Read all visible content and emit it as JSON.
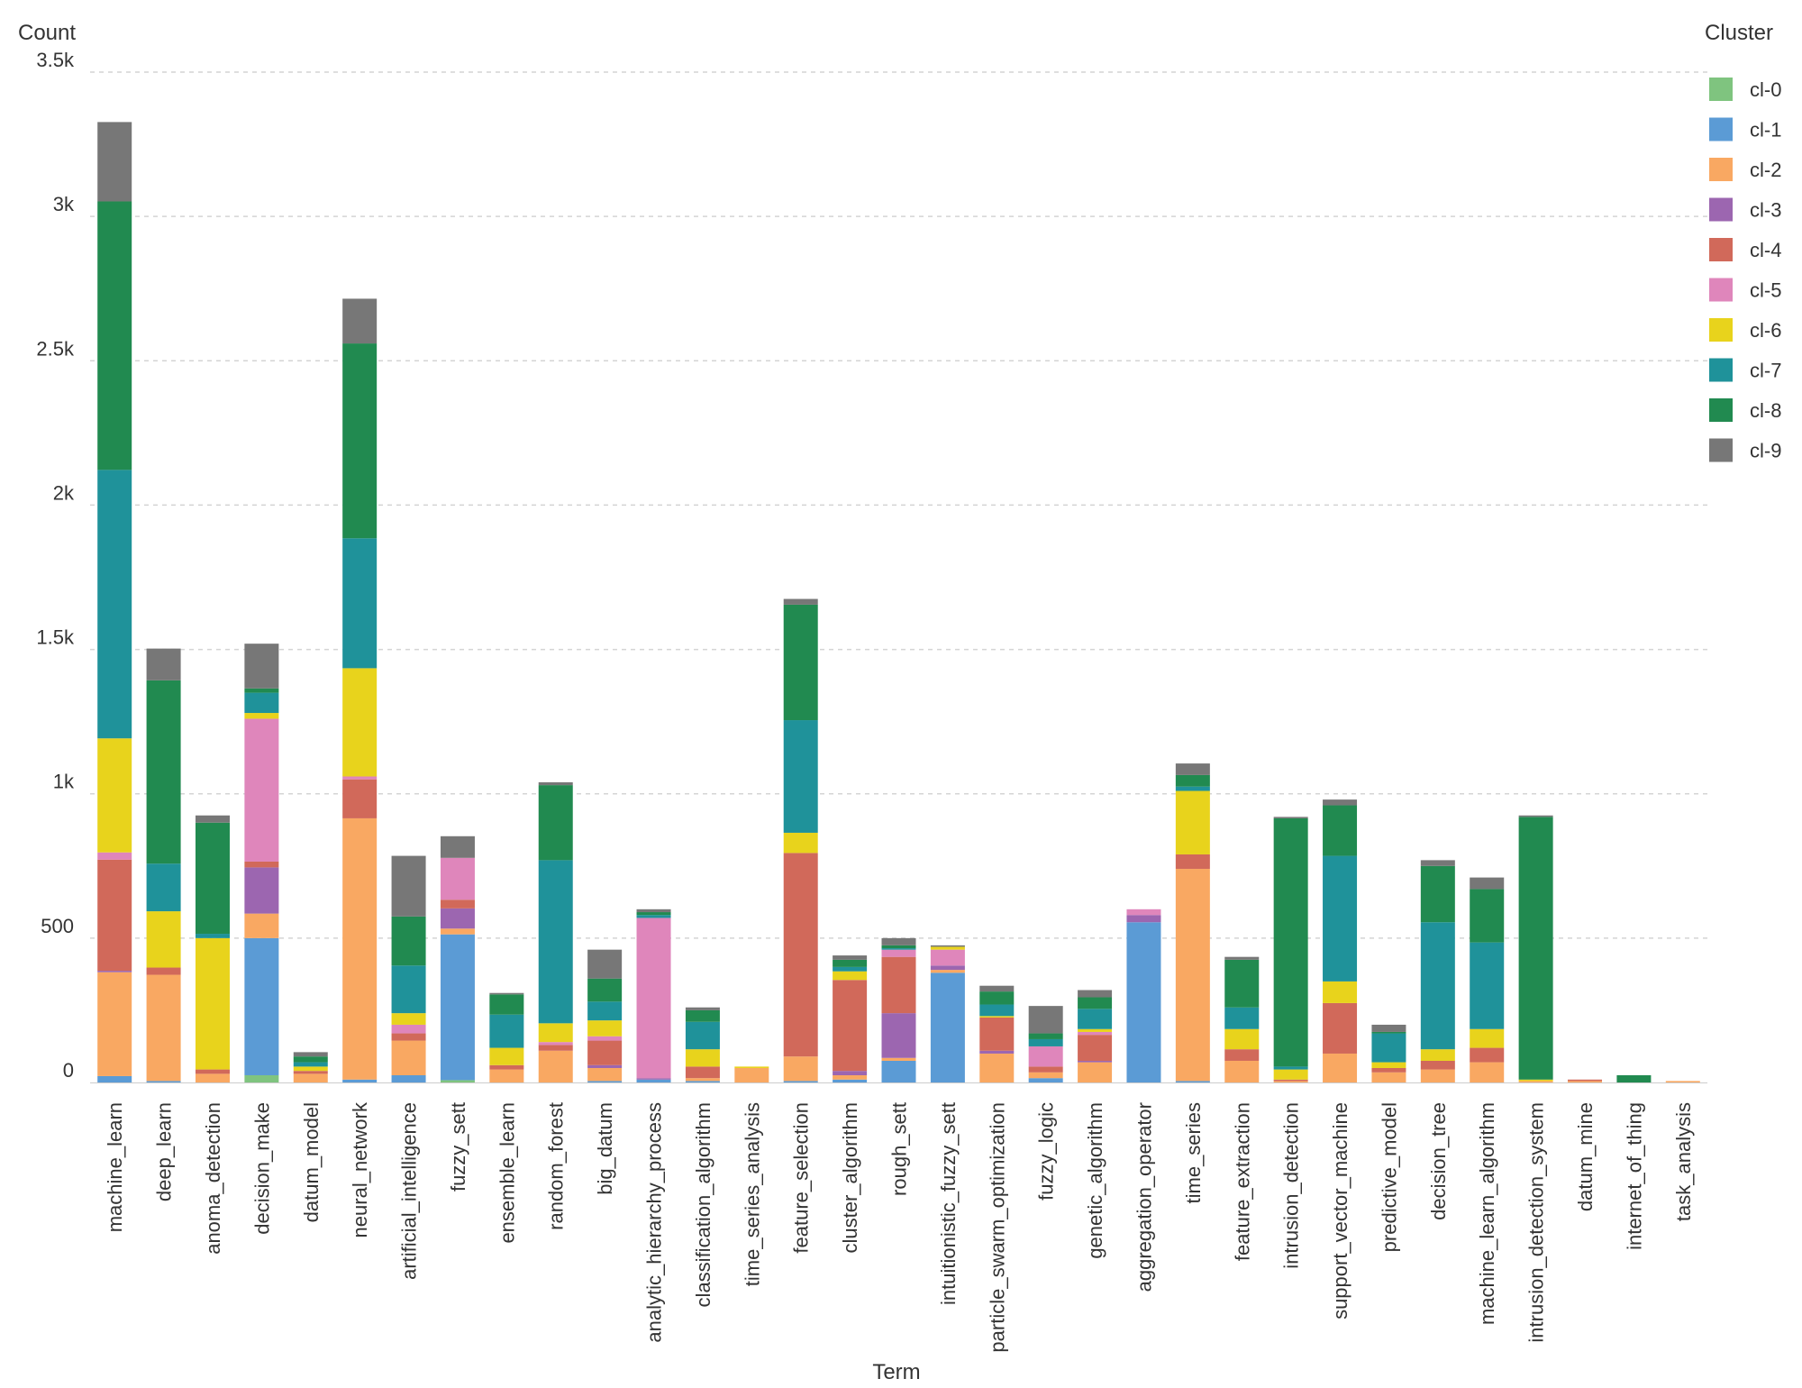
{
  "chart_data": {
    "type": "bar",
    "stacked": true,
    "title": "",
    "xlabel": "Term",
    "ylabel": "Count",
    "ylim": [
      0,
      3500
    ],
    "yticks": [
      0,
      500,
      1000,
      1500,
      2000,
      2500,
      3000,
      3500
    ],
    "ytick_labels": [
      "0",
      "500",
      "1k",
      "1.5k",
      "2k",
      "2.5k",
      "3k",
      "3.5k"
    ],
    "grid": true,
    "legend_title": "Cluster",
    "legend_position": "right",
    "categories": [
      "machine_learn",
      "deep_learn",
      "anoma_detection",
      "decision_make",
      "datum_model",
      "neural_network",
      "artificial_intelligence",
      "fuzzy_sett",
      "ensemble_learn",
      "random_forest",
      "big_datum",
      "analytic_hierarchy_process",
      "classification_algorithm",
      "time_series_analysis",
      "feature_selection",
      "cluster_algorithm",
      "rough_sett",
      "intuitionistic_fuzzy_sett",
      "particle_swarm_optimization",
      "fuzzy_logic",
      "genetic_algorithm",
      "aggregation_operator",
      "time_series",
      "feature_extraction",
      "intrusion_detection",
      "support_vector_machine",
      "predictive_model",
      "decision_tree",
      "machine_learn_algorithm",
      "intrusion_detection_system",
      "datum_mine",
      "internet_of_thing",
      "task_analysis"
    ],
    "series": [
      {
        "name": "cl-0",
        "color": "#7fc47f",
        "values": [
          0,
          0,
          0,
          25,
          0,
          0,
          0,
          8,
          0,
          0,
          0,
          0,
          0,
          0,
          0,
          0,
          0,
          0,
          0,
          0,
          0,
          0,
          0,
          0,
          0,
          0,
          0,
          0,
          0,
          0,
          0,
          0,
          0
        ]
      },
      {
        "name": "cl-1",
        "color": "#5b9bd5",
        "values": [
          22,
          5,
          0,
          475,
          0,
          10,
          25,
          505,
          0,
          0,
          5,
          10,
          5,
          0,
          5,
          10,
          75,
          380,
          0,
          15,
          0,
          555,
          5,
          0,
          0,
          0,
          0,
          0,
          0,
          0,
          0,
          0,
          0
        ]
      },
      {
        "name": "cl-2",
        "color": "#f9a862",
        "values": [
          360,
          368,
          30,
          85,
          30,
          905,
          120,
          20,
          45,
          110,
          45,
          0,
          10,
          50,
          85,
          15,
          10,
          10,
          100,
          20,
          70,
          0,
          735,
          75,
          5,
          100,
          35,
          45,
          70,
          5,
          5,
          0,
          5
        ]
      },
      {
        "name": "cl-3",
        "color": "#9c66b0",
        "values": [
          5,
          0,
          0,
          160,
          0,
          0,
          0,
          70,
          0,
          0,
          10,
          5,
          0,
          0,
          0,
          15,
          155,
          15,
          10,
          0,
          5,
          25,
          0,
          0,
          0,
          0,
          0,
          0,
          0,
          0,
          0,
          0,
          0
        ]
      },
      {
        "name": "cl-4",
        "color": "#d1695a",
        "values": [
          385,
          25,
          15,
          20,
          10,
          135,
          25,
          30,
          15,
          20,
          85,
          0,
          40,
          0,
          705,
          315,
          195,
          0,
          115,
          20,
          90,
          0,
          50,
          40,
          5,
          175,
          15,
          30,
          50,
          0,
          5,
          0,
          0
        ]
      },
      {
        "name": "cl-5",
        "color": "#df86bb",
        "values": [
          25,
          0,
          0,
          495,
          0,
          10,
          30,
          145,
          0,
          10,
          15,
          555,
          0,
          0,
          0,
          0,
          25,
          55,
          0,
          70,
          10,
          20,
          0,
          0,
          0,
          0,
          0,
          0,
          0,
          0,
          0,
          0,
          0
        ]
      },
      {
        "name": "cl-6",
        "color": "#e8d31c",
        "values": [
          395,
          195,
          455,
          20,
          15,
          375,
          40,
          0,
          60,
          65,
          55,
          0,
          60,
          5,
          70,
          30,
          0,
          10,
          5,
          0,
          10,
          0,
          220,
          70,
          35,
          75,
          20,
          40,
          65,
          5,
          0,
          0,
          0
        ]
      },
      {
        "name": "cl-7",
        "color": "#1f929a",
        "values": [
          930,
          165,
          15,
          70,
          15,
          450,
          165,
          0,
          115,
          565,
          65,
          10,
          95,
          0,
          390,
          15,
          5,
          0,
          40,
          25,
          70,
          0,
          15,
          75,
          10,
          435,
          100,
          440,
          300,
          0,
          0,
          0,
          0
        ]
      },
      {
        "name": "cl-8",
        "color": "#218a50",
        "values": [
          930,
          635,
          385,
          15,
          20,
          675,
          170,
          0,
          70,
          260,
          80,
          10,
          40,
          0,
          400,
          25,
          10,
          0,
          45,
          20,
          40,
          0,
          40,
          165,
          860,
          175,
          5,
          195,
          185,
          910,
          0,
          25,
          0
        ]
      },
      {
        "name": "cl-9",
        "color": "#777777",
        "values": [
          275,
          110,
          25,
          155,
          15,
          155,
          210,
          75,
          5,
          10,
          100,
          10,
          10,
          0,
          20,
          15,
          25,
          5,
          20,
          95,
          25,
          0,
          40,
          10,
          5,
          20,
          25,
          20,
          40,
          5,
          0,
          0,
          0
        ]
      }
    ]
  }
}
